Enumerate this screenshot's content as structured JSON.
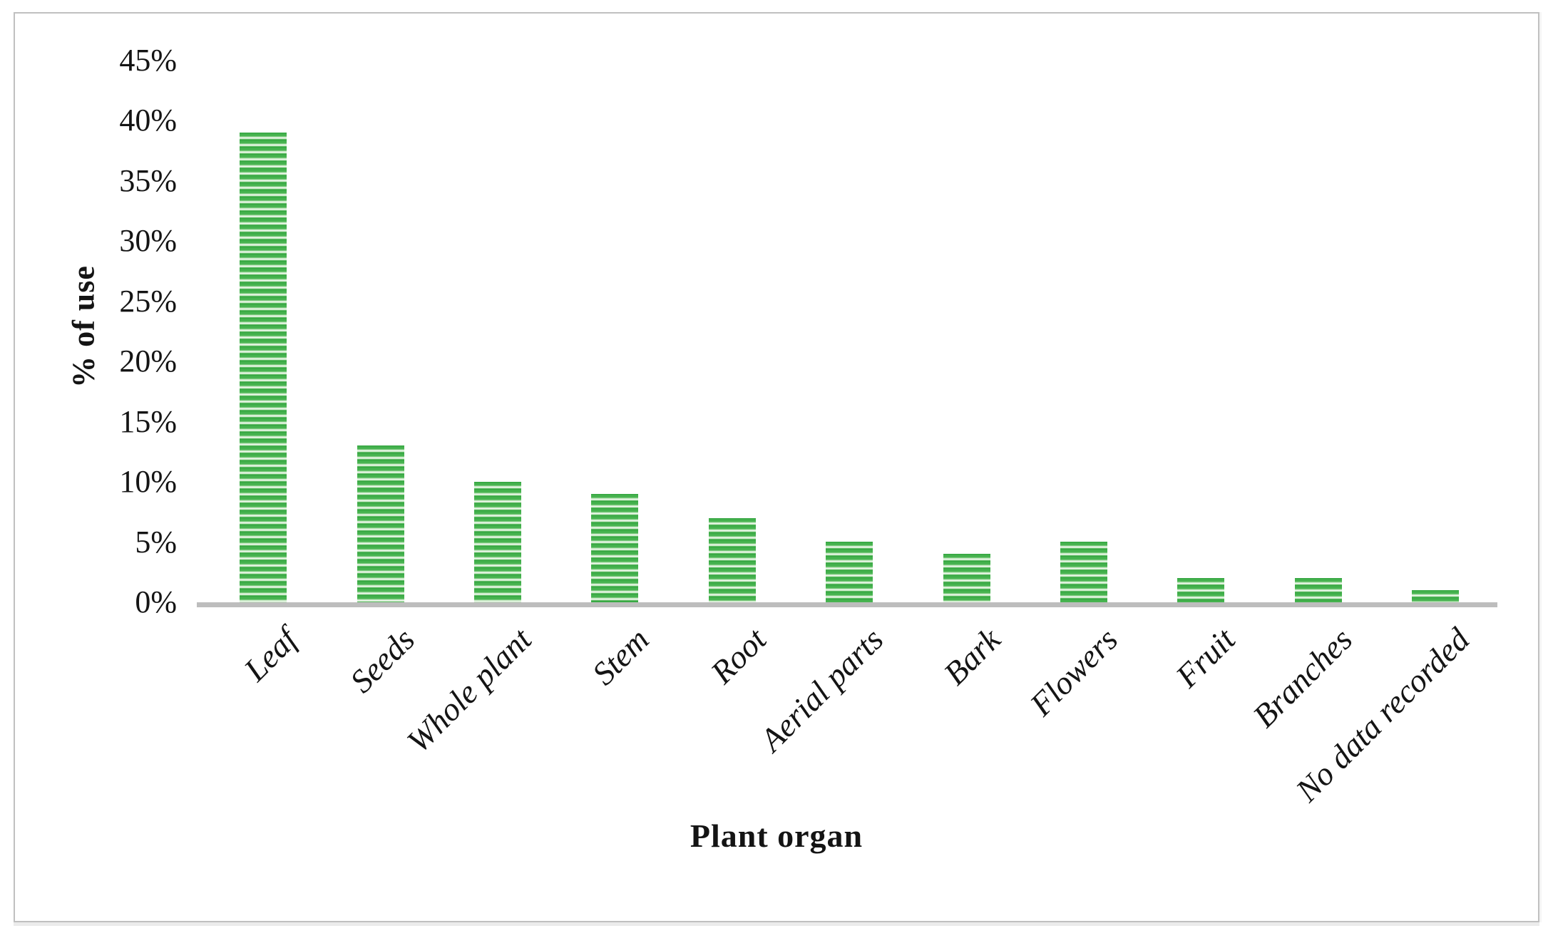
{
  "chart_data": {
    "type": "bar",
    "title": "",
    "xlabel": "Plant organ",
    "ylabel": "% of use",
    "categories": [
      "Leaf",
      "Seeds",
      "Whole plant",
      "Stem",
      "Root",
      "Aerial parts",
      "Bark",
      "Flowers",
      "Fruit",
      "Branches",
      "No data recorded"
    ],
    "values": [
      39,
      13,
      10,
      9,
      7,
      5,
      4,
      5,
      2,
      2,
      1
    ],
    "value_unit": "%",
    "ylim": [
      0,
      45
    ],
    "ytick_step": 5,
    "yticks": [
      "0%",
      "5%",
      "10%",
      "15%",
      "20%",
      "25%",
      "30%",
      "35%",
      "40%",
      "45%"
    ],
    "grid": false,
    "legend": "none",
    "bar_fill_style": "horizontal-stripes",
    "colors": {
      "bar_green_dark": "#2ea23b",
      "bar_green_mid": "#45b24e",
      "bar_green_light": "#eef8ec",
      "axis_line": "#bdbdbd",
      "frame_border": "#c0c0c0",
      "text": "#141414",
      "background": "#ffffff"
    }
  }
}
